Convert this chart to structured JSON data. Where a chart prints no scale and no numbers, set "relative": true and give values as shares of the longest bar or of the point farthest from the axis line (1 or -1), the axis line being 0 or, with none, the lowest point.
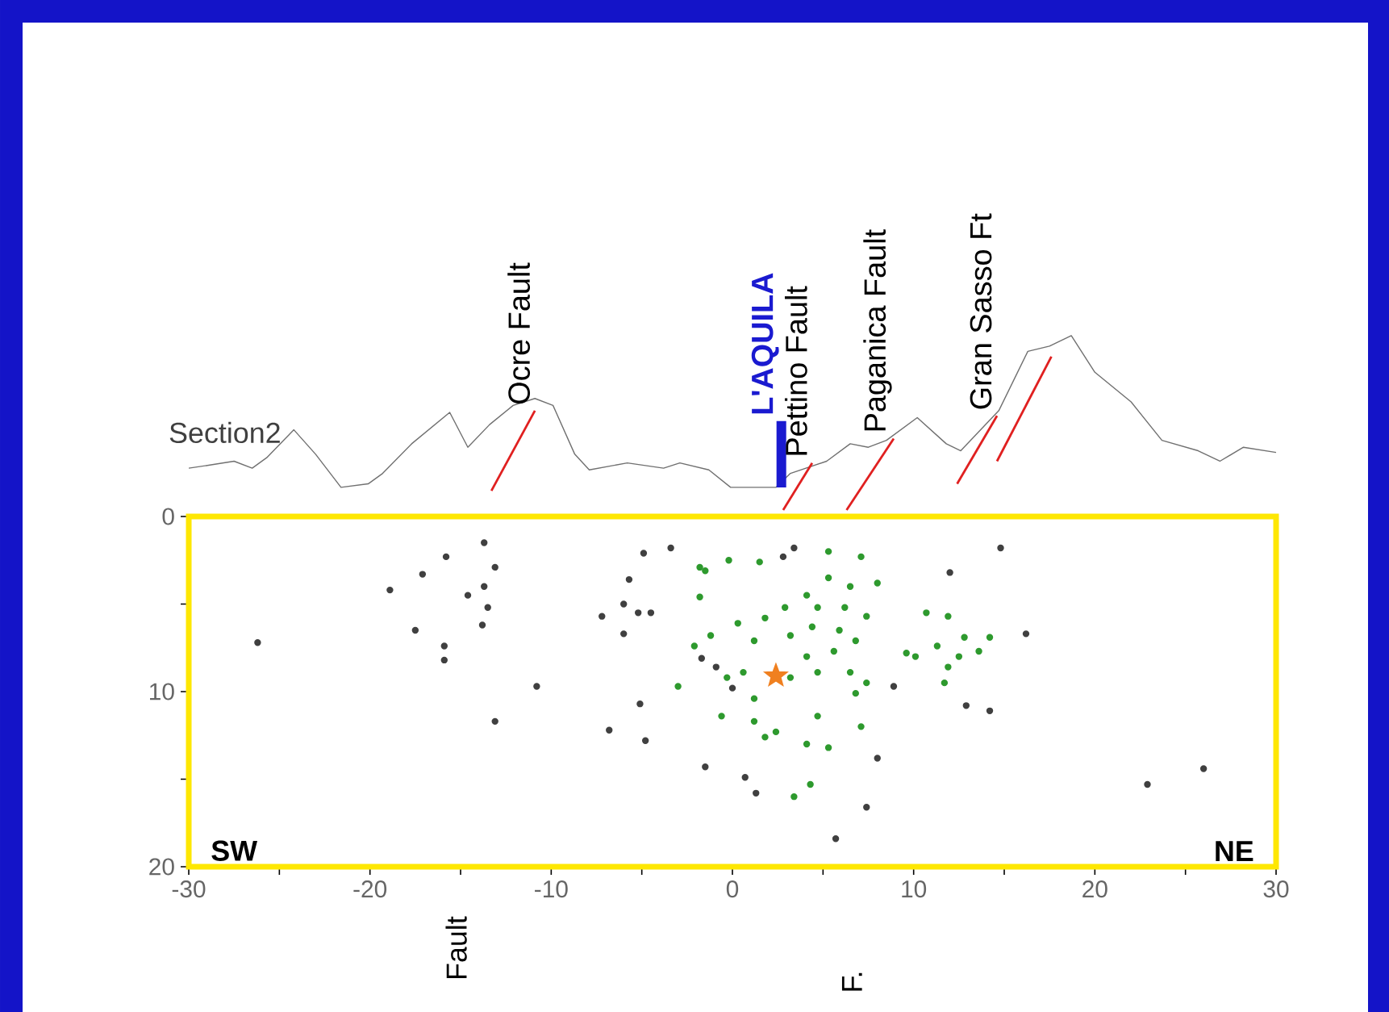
{
  "chart_data": [
    {
      "type": "line",
      "relative": true,
      "xlim": [
        -30,
        30
      ],
      "annotations": [
        {
          "text": "Ocre Fault",
          "x": -10.9,
          "y": 0.57
        },
        {
          "text": "Pettino Fault",
          "x": 4.4,
          "y": 0.27
        },
        {
          "text": "Paganica Fault",
          "x": 8.9,
          "y": 0.41
        },
        {
          "text": "Gran Sasso Ft",
          "x": 14.6,
          "y": 0.54
        }
      ],
      "series": [
        {
          "name": "Section2",
          "color": "#707070",
          "x": [
            -30,
            -28.7,
            -27.5,
            -26.5,
            -25.7,
            -24.2,
            -23.0,
            -21.6,
            -20.1,
            -19.3,
            -17.7,
            -15.6,
            -14.6,
            -13.4,
            -12.1,
            -10.9,
            -9.9,
            -8.7,
            -7.9,
            -5.8,
            -3.8,
            -2.9,
            -1.3,
            -0.1,
            2.4,
            3.2,
            5.2,
            6.5,
            7.5,
            8.5,
            10.2,
            11.8,
            12.6,
            14.7,
            16.3,
            17.5,
            18.7,
            20.0,
            22.0,
            23.7,
            25.7,
            26.9,
            28.2,
            30
          ],
          "values": [
            0.24,
            0.26,
            0.28,
            0.24,
            0.3,
            0.46,
            0.32,
            0.13,
            0.15,
            0.21,
            0.38,
            0.56,
            0.36,
            0.49,
            0.6,
            0.64,
            0.6,
            0.32,
            0.23,
            0.27,
            0.24,
            0.27,
            0.23,
            0.13,
            0.13,
            0.21,
            0.28,
            0.38,
            0.36,
            0.4,
            0.53,
            0.38,
            0.34,
            0.57,
            0.91,
            0.94,
            1.0,
            0.79,
            0.62,
            0.4,
            0.34,
            0.28,
            0.36,
            0.33
          ]
        },
        {
          "color": "#e02020",
          "x": [
            -13.3,
            -10.9
          ],
          "values": [
            0.11,
            0.57
          ]
        },
        {
          "color": "#e02020",
          "x": [
            2.8,
            4.4
          ],
          "values": [
            0,
            0.27
          ]
        },
        {
          "color": "#e02020",
          "x": [
            6.3,
            8.9
          ],
          "values": [
            0,
            0.41
          ]
        },
        {
          "color": "#e02020",
          "x": [
            12.4,
            14.6
          ],
          "values": [
            0.15,
            0.54
          ]
        },
        {
          "color": "#e02020",
          "x": [
            14.6,
            17.6
          ],
          "values": [
            0.28,
            0.88
          ]
        },
        {
          "name": "L'AQUILA",
          "color": "#1a1ad0",
          "x": [
            2.7,
            2.7
          ],
          "values": [
            0.13,
            0.51
          ]
        }
      ]
    },
    {
      "type": "scatter",
      "marker": "circle",
      "xlim": [
        -30,
        30
      ],
      "ylim": [
        20,
        0
      ],
      "xticks": [
        -30,
        {
          "value": -25,
          "label": null
        },
        -20,
        {
          "value": -15,
          "label": null
        },
        -10,
        {
          "value": -5,
          "label": null
        },
        0,
        {
          "value": 5,
          "label": null
        },
        10,
        {
          "value": 15,
          "label": null
        },
        20,
        {
          "value": 25,
          "label": null
        },
        30
      ],
      "yticks": [
        0,
        {
          "value": 5,
          "label": null
        },
        10,
        {
          "value": 15,
          "label": null
        },
        20
      ],
      "annotations": [
        "SW",
        "NE",
        "Fault",
        "F."
      ],
      "series": [
        {
          "color": "#404040",
          "x": [
            -18.9,
            -26.2,
            -17.1,
            -15.8,
            -13.7,
            -13.1,
            -13.7,
            -13.5,
            -13.8,
            -14.6,
            -17.5,
            -15.9,
            -15.9,
            -10.8,
            -13.1,
            -6.8,
            -5.1,
            -4.8,
            -1.5,
            0.7,
            1.3,
            -6.0,
            -5.2,
            -4.5,
            -5.7,
            -4.9,
            -3.4,
            -7.2,
            -6.0,
            14.8,
            12.0,
            16.2,
            14.2,
            12.9,
            26.0,
            22.9,
            7.4,
            5.7,
            8.0,
            8.9,
            -1.7,
            -0.9,
            0.0,
            2.8,
            3.4
          ],
          "values": [
            4.2,
            7.2,
            3.3,
            2.3,
            1.5,
            2.9,
            4.0,
            5.2,
            6.2,
            4.5,
            6.5,
            7.4,
            8.2,
            9.7,
            11.7,
            12.2,
            10.7,
            12.8,
            14.3,
            14.9,
            15.8,
            6.7,
            5.5,
            5.5,
            3.6,
            2.1,
            1.8,
            5.7,
            5.0,
            1.8,
            3.2,
            6.7,
            11.1,
            10.8,
            14.4,
            15.3,
            16.6,
            18.4,
            13.8,
            9.7,
            8.1,
            8.6,
            9.8,
            2.3,
            1.8
          ]
        },
        {
          "color": "#2e9a2e",
          "x": [
            -1.8,
            -0.2,
            1.5,
            5.3,
            7.1,
            5.3,
            6.5,
            8.0,
            4.1,
            2.9,
            4.7,
            6.2,
            7.4,
            1.8,
            0.3,
            -1.2,
            -2.1,
            1.2,
            3.2,
            4.4,
            5.9,
            6.8,
            5.6,
            4.1,
            0.6,
            -0.3,
            1.2,
            3.2,
            4.7,
            6.5,
            7.4,
            6.8,
            -0.6,
            1.2,
            1.8,
            2.4,
            4.7,
            5.3,
            4.1,
            7.1,
            -3.0,
            3.4,
            4.3,
            10.7,
            11.9,
            12.8,
            11.3,
            12.5,
            13.6,
            11.9,
            14.2,
            10.1,
            11.7,
            9.6,
            -1.5,
            -1.8
          ],
          "values": [
            2.9,
            2.5,
            2.6,
            2.0,
            2.3,
            3.5,
            4.0,
            3.8,
            4.5,
            5.2,
            5.2,
            5.2,
            5.7,
            5.8,
            6.1,
            6.8,
            7.4,
            7.1,
            6.8,
            6.3,
            6.5,
            7.1,
            7.7,
            8.0,
            8.9,
            9.2,
            10.4,
            9.2,
            8.9,
            8.9,
            9.5,
            10.1,
            11.4,
            11.7,
            12.6,
            12.3,
            11.4,
            13.2,
            13.0,
            12.0,
            9.7,
            16.0,
            15.3,
            5.5,
            5.7,
            6.9,
            7.4,
            8.0,
            7.7,
            8.6,
            6.9,
            8.0,
            9.5,
            7.8,
            3.1,
            4.6
          ]
        },
        {
          "color": "#f08020",
          "marker": "star",
          "x": [
            2.4
          ],
          "values": [
            9.1
          ]
        }
      ]
    }
  ]
}
